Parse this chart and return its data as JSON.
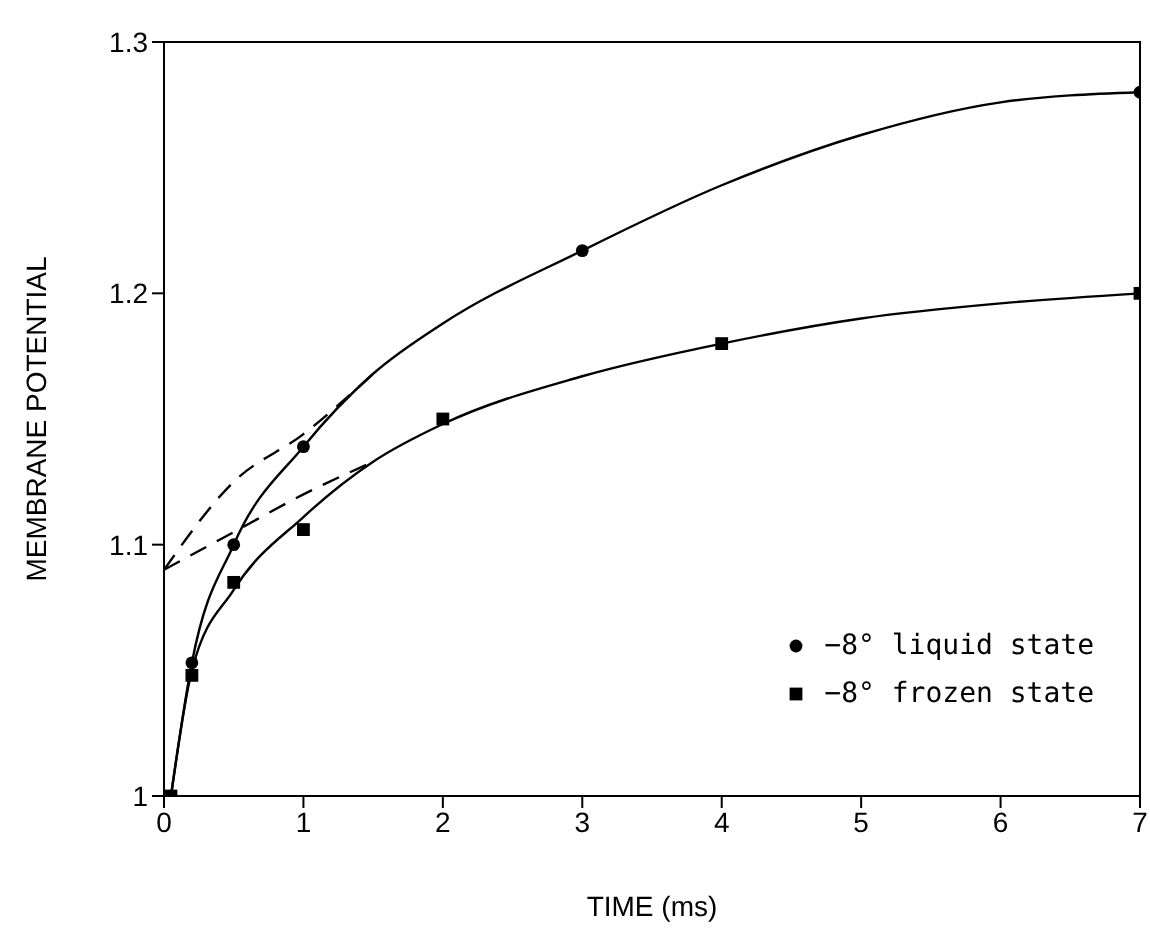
{
  "chart_data": {
    "type": "scatter",
    "xlabel": "TIME (ms)",
    "ylabel": "MEMBRANE POTENTIAL",
    "xlim": [
      0,
      7
    ],
    "xticks": [
      0,
      1,
      2,
      3,
      4,
      5,
      6,
      7
    ],
    "ylim": [
      1,
      1.3
    ],
    "yticks": [
      1,
      1.1,
      1.2,
      1.3
    ],
    "grid": false,
    "legend": "bottom right",
    "series": [
      {
        "name": "−8° liquid state",
        "marker": "circle",
        "color": "#000000",
        "x": [
          0.2,
          0.5,
          1,
          3,
          7
        ],
        "values": [
          1.053,
          1.1,
          1.139,
          1.217,
          1.28
        ]
      },
      {
        "name": "−8° frozen state",
        "marker": "square",
        "color": "#000000",
        "x": [
          0.05,
          0.2,
          0.5,
          1,
          2,
          4,
          7
        ],
        "values": [
          1.0,
          1.048,
          1.085,
          1.106,
          1.15,
          1.18,
          1.2
        ]
      },
      {
        "type": "line",
        "line_style": "solid",
        "color": "#000000",
        "x": [
          0.05,
          0.2,
          0.5,
          1,
          1.5,
          2,
          3,
          4,
          5,
          6,
          7
        ],
        "values": [
          1.0,
          1.053,
          1.1,
          1.139,
          1.168,
          1.188,
          1.217,
          1.243,
          1.263,
          1.276,
          1.28
        ]
      },
      {
        "type": "line",
        "line_style": "solid",
        "color": "#000000",
        "x": [
          0.05,
          0.2,
          0.5,
          1,
          1.5,
          2,
          3,
          4,
          5,
          6,
          7
        ],
        "values": [
          1.0,
          1.05,
          1.082,
          1.111,
          1.133,
          1.148,
          1.167,
          1.18,
          1.19,
          1.196,
          1.2
        ]
      },
      {
        "type": "line",
        "line_style": "dashed",
        "color": "#000000",
        "x": [
          0,
          0.5,
          1,
          1.5
        ],
        "values": [
          1.09,
          1.125,
          1.144,
          1.168
        ]
      },
      {
        "type": "line",
        "line_style": "dashed",
        "color": "#000000",
        "x": [
          0,
          0.5,
          1,
          1.5
        ],
        "values": [
          1.09,
          1.105,
          1.12,
          1.133
        ]
      }
    ]
  }
}
